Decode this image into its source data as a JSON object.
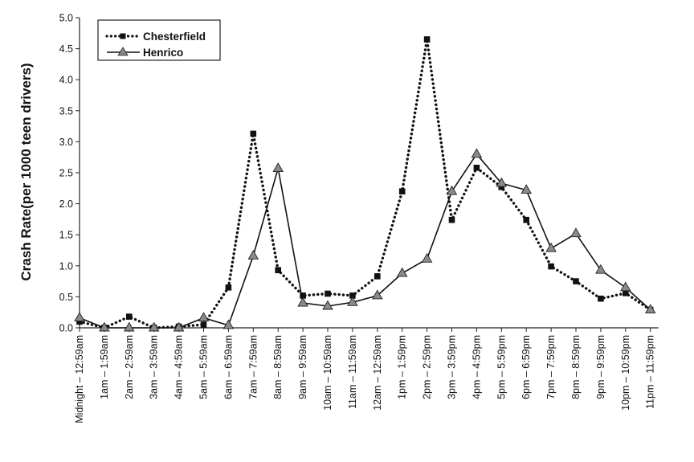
{
  "chart_data": {
    "type": "line",
    "title": "",
    "xlabel": "",
    "ylabel": "Crash Rate(per 1000 teen drivers)",
    "ylim": [
      0,
      5
    ],
    "yticks": [
      "0.0",
      "0.5",
      "1.0",
      "1.5",
      "2.0",
      "2.5",
      "3.0",
      "3.5",
      "4.0",
      "4.5",
      "5.0"
    ],
    "grid": false,
    "legend_position": "top-left",
    "categories": [
      "Midnight – 12:59am",
      "1am – 1:59am",
      "2am – 2:59am",
      "3am – 3:59am",
      "4am – 4:59am",
      "5am – 5:59am",
      "6am – 6:59am",
      "7am – 7:59am",
      "8am – 8:59am",
      "9am – 9:59am",
      "10am – 10:59am",
      "11am – 11:59am",
      "12am – 12:59am",
      "1pm – 1:59pm",
      "2pm – 2:59pm",
      "3pm – 3:59pm",
      "4pm – 4:59pm",
      "5pm – 5:59pm",
      "6pm – 6:59pm",
      "7pm – 7:59pm",
      "8pm – 8:59pm",
      "9pm – 9:59pm",
      "10pm – 10:59pm",
      "11pm – 11:59pm"
    ],
    "series": [
      {
        "name": "Chesterfield",
        "style": "dotted",
        "marker": "square",
        "color": "#111111",
        "values": [
          0.1,
          0.0,
          0.18,
          0.0,
          0.02,
          0.05,
          0.65,
          3.13,
          0.93,
          0.52,
          0.55,
          0.52,
          0.83,
          2.2,
          4.65,
          1.74,
          2.58,
          2.27,
          1.74,
          0.99,
          0.75,
          0.47,
          0.56,
          0.29
        ]
      },
      {
        "name": "Henrico",
        "style": "solid",
        "marker": "triangle",
        "color": "#111111",
        "values": [
          0.16,
          0.0,
          0.0,
          0.0,
          0.0,
          0.16,
          0.04,
          1.16,
          2.57,
          0.4,
          0.35,
          0.41,
          0.52,
          0.88,
          1.11,
          2.2,
          2.8,
          2.33,
          2.22,
          1.28,
          1.52,
          0.93,
          0.65,
          0.29
        ]
      }
    ]
  }
}
